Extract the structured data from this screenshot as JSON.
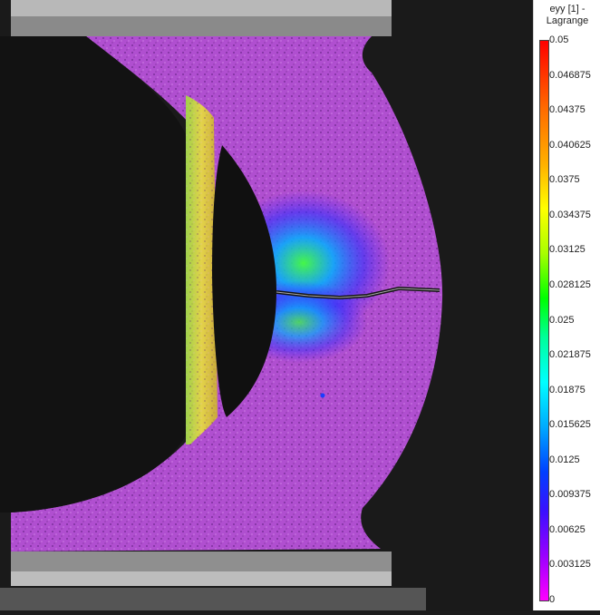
{
  "legend": {
    "title_line1": "eyy [1] -",
    "title_line2": "Lagrange",
    "ticks": [
      "0.05",
      "0.046875",
      "0.04375",
      "0.040625",
      "0.0375",
      "0.034375",
      "0.03125",
      "0.028125",
      "0.025",
      "0.021875",
      "0.01875",
      "0.015625",
      "0.0125",
      "0.009375",
      "0.00625",
      "0.003125",
      "0"
    ],
    "colors": {
      "max": "#ff0000",
      "mid": "#00ff00",
      "min": "#ff00ff",
      "specimen": "#b04fd0"
    }
  }
}
